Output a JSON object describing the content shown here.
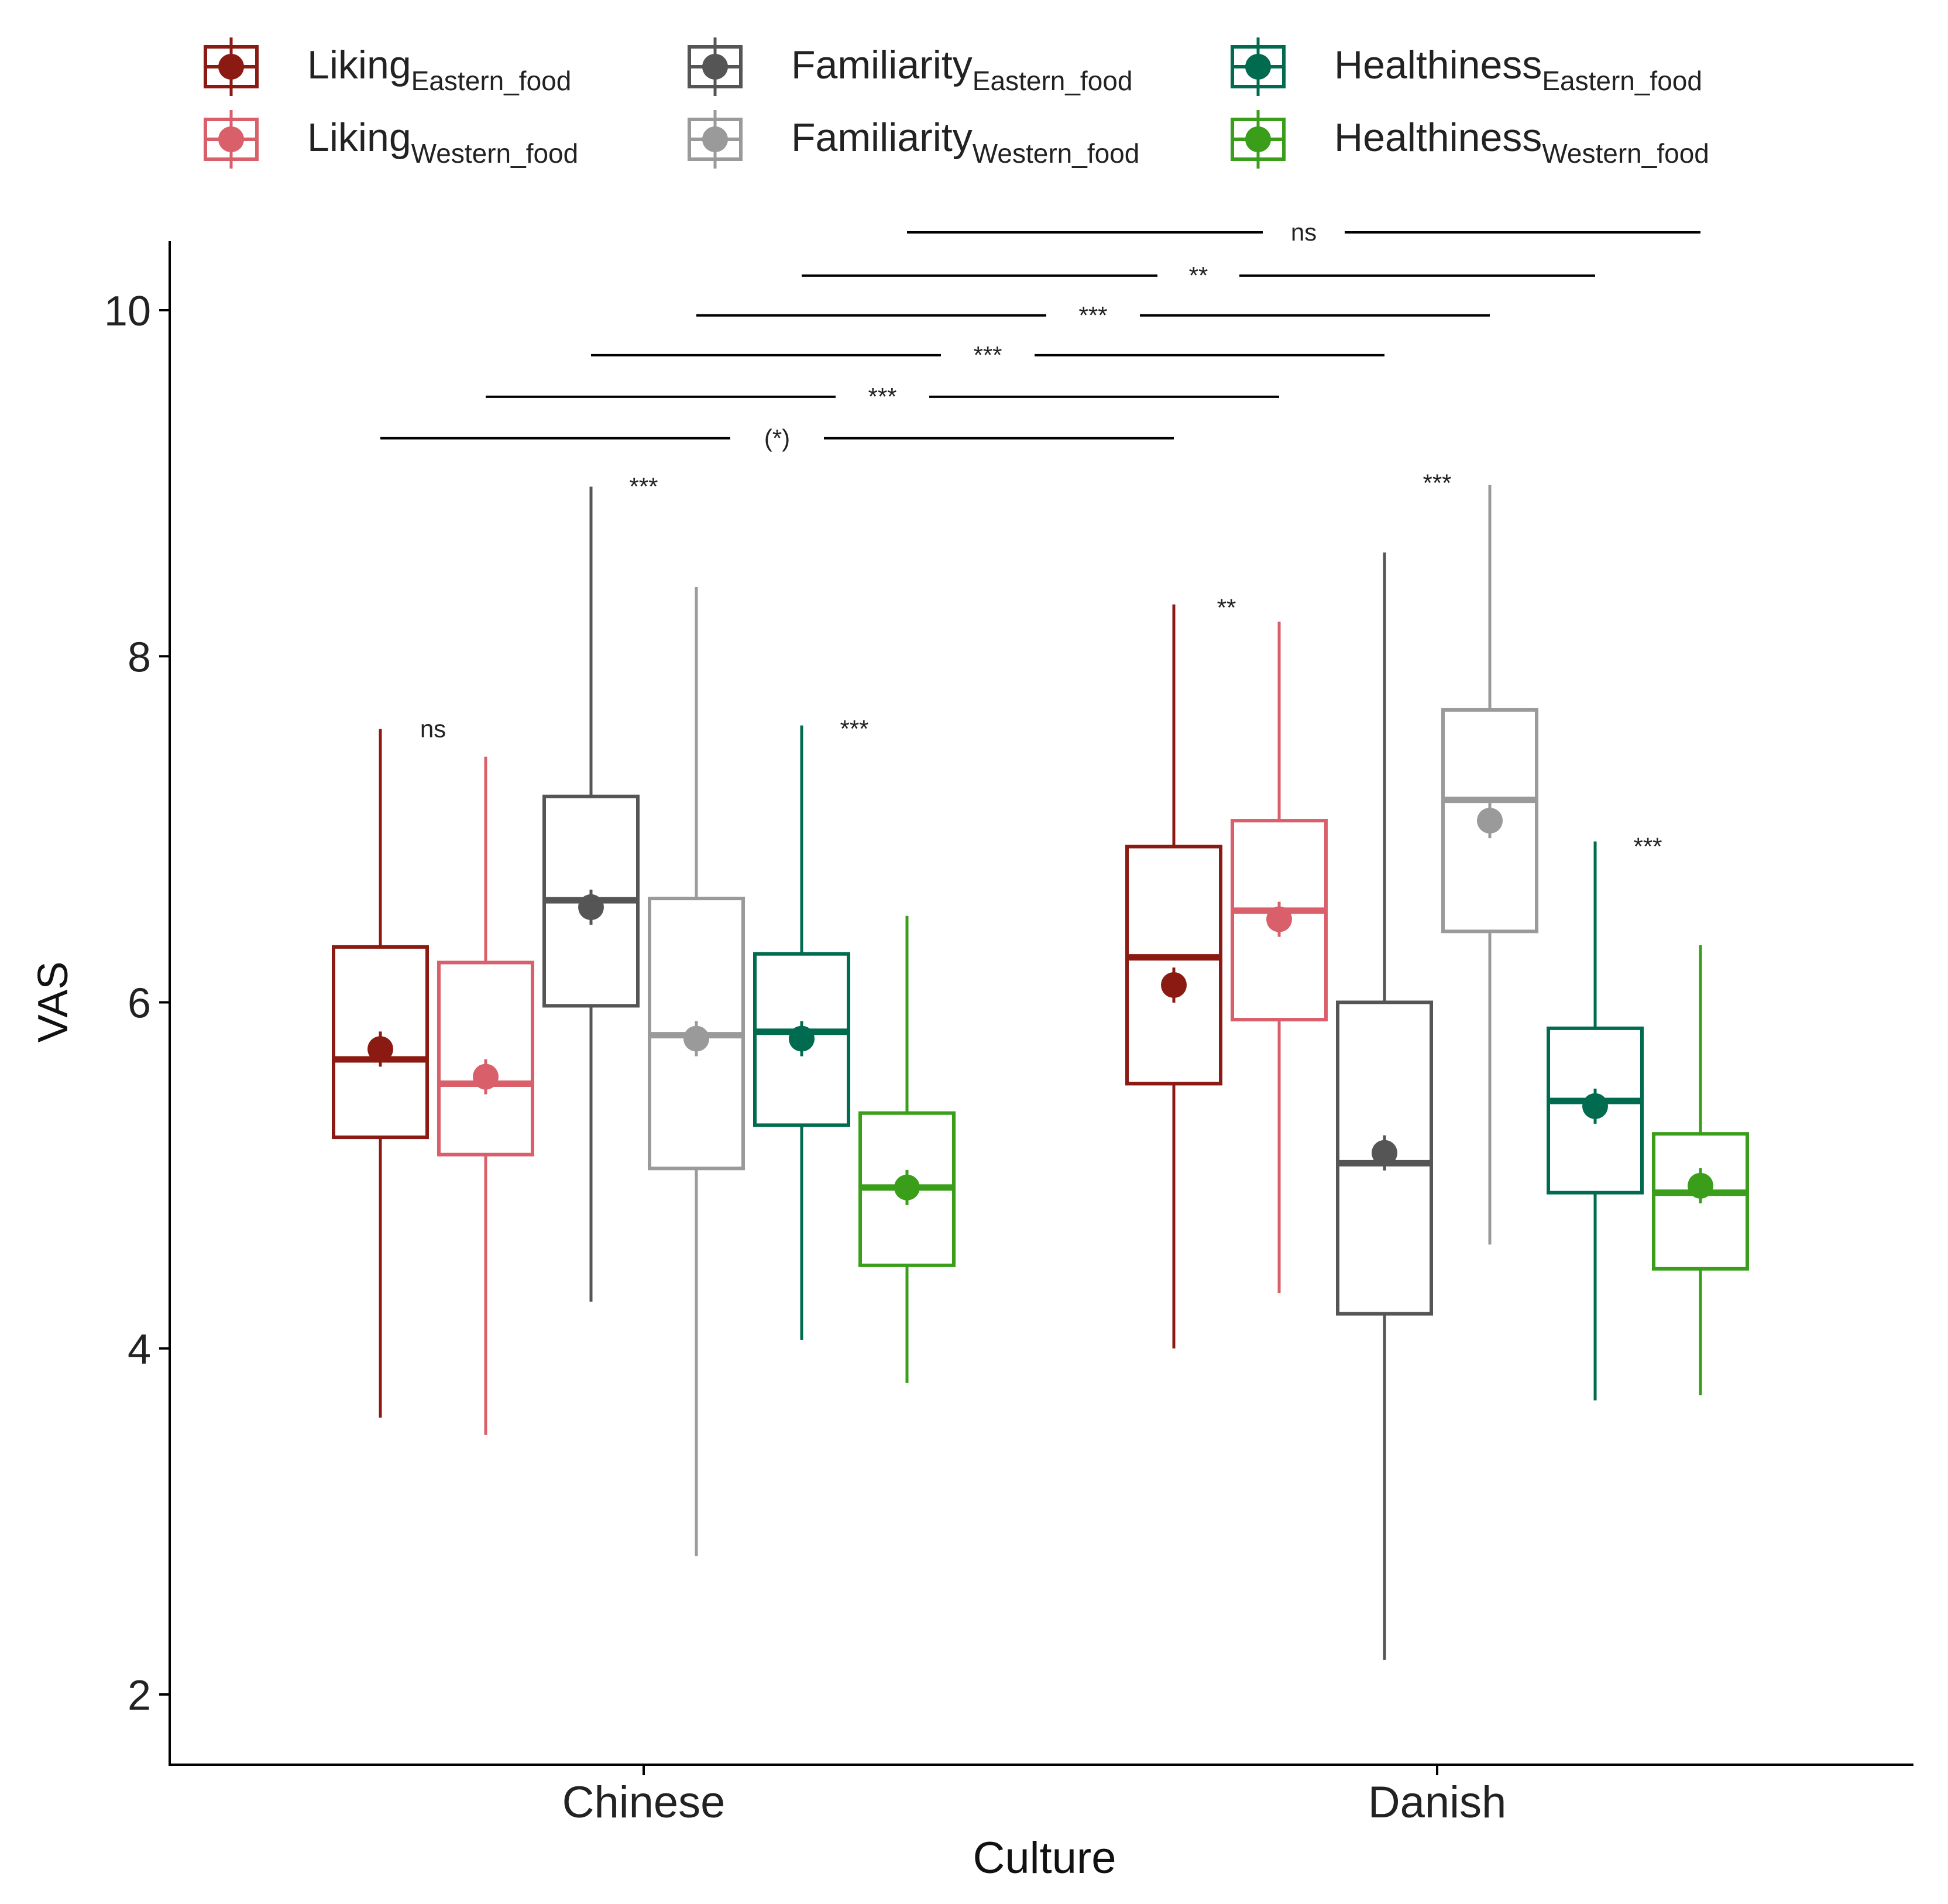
{
  "chart_data": {
    "type": "boxplot",
    "xlabel": "Culture",
    "ylabel": "VAS",
    "ylim": [
      1.6,
      10.4
    ],
    "yticks": [
      2,
      4,
      6,
      8,
      10
    ],
    "categories": [
      "Chinese",
      "Danish"
    ],
    "legend": {
      "placement": "top",
      "entries": [
        {
          "base": "Liking",
          "sub": "Eastern_food",
          "color": "#8B1A12"
        },
        {
          "base": "Liking",
          "sub": "Western_food",
          "color": "#D9606A"
        },
        {
          "base": "Familiarity",
          "sub": "Eastern_food",
          "color": "#555555"
        },
        {
          "base": "Familiarity",
          "sub": "Western_food",
          "color": "#9A9A9A"
        },
        {
          "base": "Healthiness",
          "sub": "Eastern_food",
          "color": "#006B4F"
        },
        {
          "base": "Healthiness",
          "sub": "Western_food",
          "color": "#3A9E1A"
        }
      ]
    },
    "series": [
      {
        "name": "Liking Eastern_food",
        "color": "#8B1A12",
        "boxes": [
          {
            "min": 3.6,
            "q1": 5.22,
            "median": 5.67,
            "q3": 6.32,
            "max": 7.58,
            "mean": 5.73
          },
          {
            "min": 4.0,
            "q1": 5.53,
            "median": 6.26,
            "q3": 6.9,
            "max": 8.3,
            "mean": 6.1
          }
        ]
      },
      {
        "name": "Liking Western_food",
        "color": "#D9606A",
        "boxes": [
          {
            "min": 3.5,
            "q1": 5.12,
            "median": 5.53,
            "q3": 6.23,
            "max": 7.42,
            "mean": 5.57
          },
          {
            "min": 4.32,
            "q1": 5.9,
            "median": 6.53,
            "q3": 7.05,
            "max": 8.2,
            "mean": 6.48
          }
        ]
      },
      {
        "name": "Familiarity Eastern_food",
        "color": "#555555",
        "boxes": [
          {
            "min": 4.27,
            "q1": 5.98,
            "median": 6.59,
            "q3": 7.19,
            "max": 8.98,
            "mean": 6.55
          },
          {
            "min": 2.2,
            "q1": 4.2,
            "median": 5.07,
            "q3": 6.0,
            "max": 8.6,
            "mean": 5.13
          }
        ]
      },
      {
        "name": "Familiarity Western_food",
        "color": "#9A9A9A",
        "boxes": [
          {
            "min": 2.8,
            "q1": 5.04,
            "median": 5.81,
            "q3": 6.6,
            "max": 8.4,
            "mean": 5.79
          },
          {
            "min": 4.6,
            "q1": 6.41,
            "median": 7.17,
            "q3": 7.69,
            "max": 8.99,
            "mean": 7.05
          }
        ]
      },
      {
        "name": "Healthiness Eastern_food",
        "color": "#006B4F",
        "boxes": [
          {
            "min": 4.05,
            "q1": 5.29,
            "median": 5.83,
            "q3": 6.28,
            "max": 7.6,
            "mean": 5.79
          },
          {
            "min": 3.7,
            "q1": 4.9,
            "median": 5.43,
            "q3": 5.85,
            "max": 6.93,
            "mean": 5.4
          }
        ]
      },
      {
        "name": "Healthiness Western_food",
        "color": "#3A9E1A",
        "boxes": [
          {
            "min": 3.8,
            "q1": 4.48,
            "median": 4.93,
            "q3": 5.36,
            "max": 6.5,
            "mean": 4.93
          },
          {
            "min": 3.73,
            "q1": 4.46,
            "median": 4.9,
            "q3": 5.24,
            "max": 6.33,
            "mean": 4.94
          }
        ]
      }
    ],
    "within_annotations": [
      {
        "category": 0,
        "pair": [
          0,
          1
        ],
        "label": "ns",
        "y": 7.58
      },
      {
        "category": 0,
        "pair": [
          2,
          3
        ],
        "label": "***",
        "y": 8.98
      },
      {
        "category": 0,
        "pair": [
          4,
          5
        ],
        "label": "***",
        "y": 7.58
      },
      {
        "category": 1,
        "pair": [
          0,
          1
        ],
        "label": "**",
        "y": 8.28
      },
      {
        "category": 1,
        "pair": [
          2,
          3
        ],
        "label": "***",
        "y": 9.0
      },
      {
        "category": 1,
        "pair": [
          4,
          5
        ],
        "label": "***",
        "y": 6.9
      }
    ],
    "between_annotations": [
      {
        "series": 0,
        "label": "(*)",
        "y": 9.26
      },
      {
        "series": 1,
        "label": "***",
        "y": 9.5
      },
      {
        "series": 2,
        "label": "***",
        "y": 9.74
      },
      {
        "series": 3,
        "label": "***",
        "y": 9.97
      },
      {
        "series": 4,
        "label": "**",
        "y": 10.2
      },
      {
        "series": 5,
        "label": "ns",
        "y": 10.45
      }
    ]
  }
}
